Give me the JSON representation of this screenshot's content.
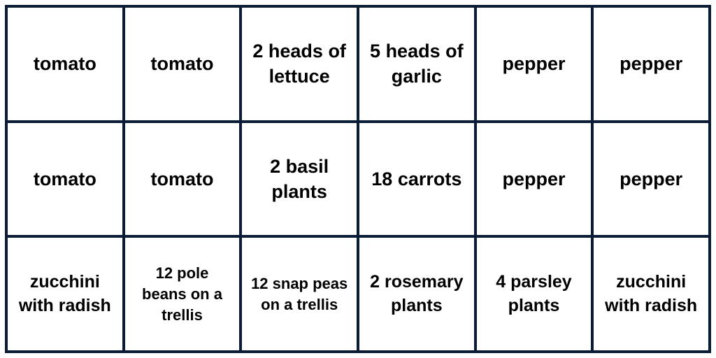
{
  "grid": {
    "type": "table",
    "columns": 6,
    "rows": 3,
    "border_color": "#0b1d36",
    "background_color": "#ffffff",
    "text_color": "#000000",
    "font_weight": 600,
    "cells": [
      {
        "text": "tomato",
        "size": "large"
      },
      {
        "text": "tomato",
        "size": "large"
      },
      {
        "text": "2 heads of lettuce",
        "size": "large"
      },
      {
        "text": "5 heads of garlic",
        "size": "large"
      },
      {
        "text": "pepper",
        "size": "large"
      },
      {
        "text": "pepper",
        "size": "large"
      },
      {
        "text": "tomato",
        "size": "large"
      },
      {
        "text": "tomato",
        "size": "large"
      },
      {
        "text": "2 basil plants",
        "size": "large"
      },
      {
        "text": "18 carrots",
        "size": "large"
      },
      {
        "text": "pepper",
        "size": "large"
      },
      {
        "text": "pepper",
        "size": "large"
      },
      {
        "text": "zucchini with radish",
        "size": "medium"
      },
      {
        "text": "12 pole beans on a trellis",
        "size": "small"
      },
      {
        "text": "12 snap peas on a trellis",
        "size": "small"
      },
      {
        "text": "2 rosemary plants",
        "size": "medium"
      },
      {
        "text": "4 parsley plants",
        "size": "medium"
      },
      {
        "text": "zucchini with radish",
        "size": "medium"
      }
    ]
  }
}
